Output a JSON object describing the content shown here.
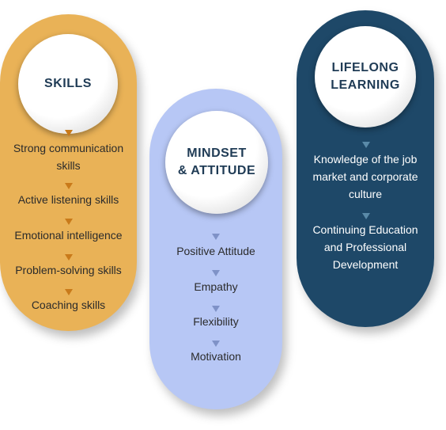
{
  "columns": [
    {
      "title": "SKILLS",
      "items": [
        "Strong communication\nskills",
        "Active listening skills",
        "Emotional intelligence",
        "Problem-solving skills",
        "Coaching skills"
      ],
      "color": "#e9b257"
    },
    {
      "title": "MINDSET\n& ATTITUDE",
      "items": [
        "Positive Attitude",
        "Empathy",
        "Flexibility",
        "Motivation"
      ],
      "color": "#b7c7f5"
    },
    {
      "title": "LIFELONG\nLEARNING",
      "items": [
        "Knowledge of the job\nmarket and corporate\nculture",
        "Continuing Education\nand  Professional\nDevelopment"
      ],
      "color": "#1e4868"
    }
  ]
}
